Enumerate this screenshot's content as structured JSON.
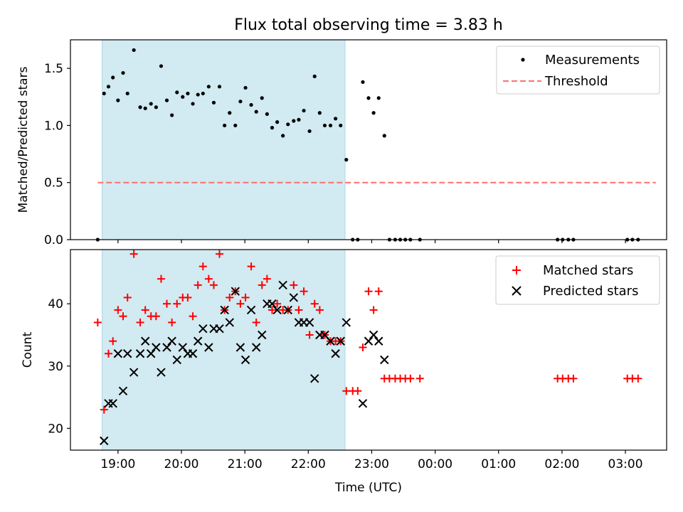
{
  "chart_data": {
    "title": "Flux total observing time = 3.83 h",
    "xlabel": "Time (UTC)",
    "x_unit": "hours since 18:00 UTC",
    "xlim": [
      0.25,
      9.65
    ],
    "xticks": [
      {
        "value": 1,
        "label": "19:00"
      },
      {
        "value": 2,
        "label": "20:00"
      },
      {
        "value": 3,
        "label": "21:00"
      },
      {
        "value": 4,
        "label": "22:00"
      },
      {
        "value": 5,
        "label": "23:00"
      },
      {
        "value": 6,
        "label": "00:00"
      },
      {
        "value": 7,
        "label": "01:00"
      },
      {
        "value": 8,
        "label": "02:00"
      },
      {
        "value": 9,
        "label": "03:00"
      }
    ],
    "shaded_span": {
      "x0": 0.75,
      "x1": 4.58,
      "color": "#add8e6"
    },
    "top": {
      "type": "scatter",
      "ylabel": "Matched/Predicted stars",
      "ylim": [
        0,
        1.75
      ],
      "yticks": [
        {
          "value": 0,
          "label": "0.0"
        },
        {
          "value": 0.5,
          "label": "0.5"
        },
        {
          "value": 1,
          "label": "1.0"
        },
        {
          "value": 1.5,
          "label": "1.5"
        }
      ],
      "threshold": {
        "name": "Threshold",
        "value": 0.5,
        "x0": 0.68,
        "x1": 9.48,
        "color": "#ff6f6f"
      },
      "legend": {
        "position": "top-right",
        "entries": [
          "Measurements",
          "Threshold"
        ]
      },
      "measurements": {
        "name": "Measurements",
        "color": "#000000",
        "points": [
          [
            0.68,
            0.0
          ],
          [
            0.78,
            1.28
          ],
          [
            0.85,
            1.34
          ],
          [
            0.92,
            1.42
          ],
          [
            1.0,
            1.22
          ],
          [
            1.08,
            1.46
          ],
          [
            1.15,
            1.28
          ],
          [
            1.25,
            1.66
          ],
          [
            1.35,
            1.16
          ],
          [
            1.43,
            1.15
          ],
          [
            1.52,
            1.19
          ],
          [
            1.6,
            1.16
          ],
          [
            1.68,
            1.52
          ],
          [
            1.77,
            1.22
          ],
          [
            1.85,
            1.09
          ],
          [
            1.93,
            1.29
          ],
          [
            2.02,
            1.25
          ],
          [
            2.1,
            1.28
          ],
          [
            2.18,
            1.19
          ],
          [
            2.26,
            1.27
          ],
          [
            2.34,
            1.28
          ],
          [
            2.43,
            1.34
          ],
          [
            2.51,
            1.2
          ],
          [
            2.6,
            1.34
          ],
          [
            2.68,
            1.0
          ],
          [
            2.76,
            1.11
          ],
          [
            2.85,
            1.0
          ],
          [
            2.93,
            1.21
          ],
          [
            3.01,
            1.33
          ],
          [
            3.1,
            1.18
          ],
          [
            3.18,
            1.12
          ],
          [
            3.27,
            1.24
          ],
          [
            3.35,
            1.1
          ],
          [
            3.43,
            0.98
          ],
          [
            3.51,
            1.03
          ],
          [
            3.6,
            0.91
          ],
          [
            3.68,
            1.01
          ],
          [
            3.77,
            1.04
          ],
          [
            3.85,
            1.05
          ],
          [
            3.93,
            1.13
          ],
          [
            4.02,
            0.95
          ],
          [
            4.1,
            1.43
          ],
          [
            4.18,
            1.11
          ],
          [
            4.26,
            1.0
          ],
          [
            4.35,
            1.0
          ],
          [
            4.43,
            1.06
          ],
          [
            4.51,
            1.0
          ],
          [
            4.6,
            0.7
          ],
          [
            4.7,
            0.0
          ],
          [
            4.78,
            0.0
          ],
          [
            4.86,
            1.38
          ],
          [
            4.95,
            1.24
          ],
          [
            5.03,
            1.11
          ],
          [
            5.11,
            1.24
          ],
          [
            5.2,
            0.91
          ],
          [
            5.28,
            0.0
          ],
          [
            5.37,
            0.0
          ],
          [
            5.45,
            0.0
          ],
          [
            5.53,
            0.0
          ],
          [
            5.61,
            0.0
          ],
          [
            5.76,
            0.0
          ],
          [
            7.93,
            0.0
          ],
          [
            8.01,
            0.0
          ],
          [
            8.1,
            0.0
          ],
          [
            8.18,
            0.0
          ],
          [
            9.03,
            0.0
          ],
          [
            9.11,
            0.0
          ],
          [
            9.2,
            0.0
          ]
        ]
      }
    },
    "bottom": {
      "type": "scatter",
      "ylabel": "Count",
      "ylim": [
        16.5,
        48.7
      ],
      "yticks": [
        {
          "value": 20,
          "label": "20"
        },
        {
          "value": 30,
          "label": "30"
        },
        {
          "value": 40,
          "label": "40"
        }
      ],
      "legend": {
        "position": "top-right",
        "entries": [
          "Matched stars",
          "Predicted stars"
        ]
      },
      "matched": {
        "name": "Matched stars",
        "color": "#ff0000",
        "marker": "plus",
        "points": [
          [
            0.68,
            37
          ],
          [
            0.78,
            23
          ],
          [
            0.85,
            32
          ],
          [
            0.92,
            34
          ],
          [
            1.0,
            39
          ],
          [
            1.08,
            38
          ],
          [
            1.15,
            41
          ],
          [
            1.25,
            48
          ],
          [
            1.35,
            37
          ],
          [
            1.43,
            39
          ],
          [
            1.52,
            38
          ],
          [
            1.6,
            38
          ],
          [
            1.68,
            44
          ],
          [
            1.77,
            40
          ],
          [
            1.85,
            37
          ],
          [
            1.93,
            40
          ],
          [
            2.02,
            41
          ],
          [
            2.1,
            41
          ],
          [
            2.18,
            38
          ],
          [
            2.26,
            43
          ],
          [
            2.34,
            46
          ],
          [
            2.43,
            44
          ],
          [
            2.51,
            43
          ],
          [
            2.6,
            48
          ],
          [
            2.68,
            39
          ],
          [
            2.76,
            41
          ],
          [
            2.85,
            42
          ],
          [
            2.93,
            40
          ],
          [
            3.01,
            41
          ],
          [
            3.1,
            46
          ],
          [
            3.18,
            37
          ],
          [
            3.27,
            43
          ],
          [
            3.35,
            44
          ],
          [
            3.43,
            39
          ],
          [
            3.51,
            40
          ],
          [
            3.6,
            39
          ],
          [
            3.68,
            39
          ],
          [
            3.77,
            43
          ],
          [
            3.85,
            39
          ],
          [
            3.93,
            42
          ],
          [
            4.02,
            35
          ],
          [
            4.1,
            40
          ],
          [
            4.18,
            39
          ],
          [
            4.26,
            35
          ],
          [
            4.35,
            34
          ],
          [
            4.43,
            34
          ],
          [
            4.51,
            34
          ],
          [
            4.6,
            26
          ],
          [
            4.7,
            26
          ],
          [
            4.78,
            26
          ],
          [
            4.86,
            33
          ],
          [
            4.95,
            42
          ],
          [
            5.03,
            39
          ],
          [
            5.11,
            42
          ],
          [
            5.2,
            28
          ],
          [
            5.28,
            28
          ],
          [
            5.37,
            28
          ],
          [
            5.45,
            28
          ],
          [
            5.53,
            28
          ],
          [
            5.61,
            28
          ],
          [
            5.76,
            28
          ],
          [
            7.93,
            28
          ],
          [
            8.01,
            28
          ],
          [
            8.1,
            28
          ],
          [
            8.18,
            28
          ],
          [
            9.03,
            28
          ],
          [
            9.11,
            28
          ],
          [
            9.2,
            28
          ]
        ]
      },
      "predicted": {
        "name": "Predicted stars",
        "color": "#000000",
        "marker": "x",
        "points": [
          [
            0.78,
            18
          ],
          [
            0.85,
            24
          ],
          [
            0.92,
            24
          ],
          [
            1.0,
            32
          ],
          [
            1.08,
            26
          ],
          [
            1.15,
            32
          ],
          [
            1.25,
            29
          ],
          [
            1.35,
            32
          ],
          [
            1.43,
            34
          ],
          [
            1.52,
            32
          ],
          [
            1.6,
            33
          ],
          [
            1.68,
            29
          ],
          [
            1.77,
            33
          ],
          [
            1.85,
            34
          ],
          [
            1.93,
            31
          ],
          [
            2.02,
            33
          ],
          [
            2.1,
            32
          ],
          [
            2.18,
            32
          ],
          [
            2.26,
            34
          ],
          [
            2.34,
            36
          ],
          [
            2.43,
            33
          ],
          [
            2.51,
            36
          ],
          [
            2.6,
            36
          ],
          [
            2.68,
            39
          ],
          [
            2.76,
            37
          ],
          [
            2.85,
            42
          ],
          [
            2.93,
            33
          ],
          [
            3.01,
            31
          ],
          [
            3.1,
            39
          ],
          [
            3.18,
            33
          ],
          [
            3.27,
            35
          ],
          [
            3.35,
            40
          ],
          [
            3.43,
            40
          ],
          [
            3.51,
            39
          ],
          [
            3.6,
            43
          ],
          [
            3.68,
            39
          ],
          [
            3.77,
            41
          ],
          [
            3.85,
            37
          ],
          [
            3.93,
            37
          ],
          [
            4.02,
            37
          ],
          [
            4.1,
            28
          ],
          [
            4.18,
            35
          ],
          [
            4.26,
            35
          ],
          [
            4.35,
            34
          ],
          [
            4.43,
            32
          ],
          [
            4.51,
            34
          ],
          [
            4.6,
            37
          ],
          [
            4.86,
            24
          ],
          [
            4.95,
            34
          ],
          [
            5.03,
            35
          ],
          [
            5.11,
            34
          ],
          [
            5.2,
            31
          ]
        ]
      }
    }
  }
}
